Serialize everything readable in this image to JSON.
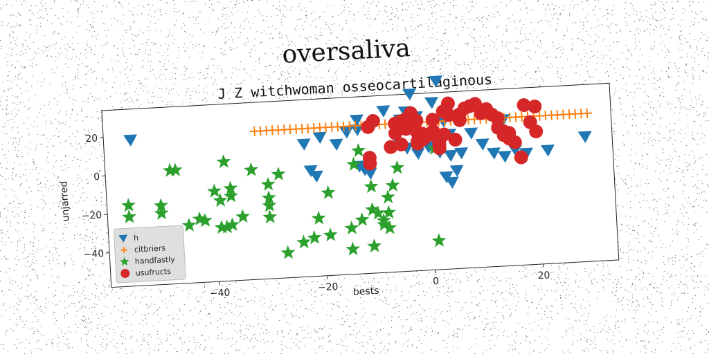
{
  "figure": {
    "suptitle": "oversaliva"
  },
  "chart_data": {
    "type": "scatter",
    "title": "J Z witchwoman osseocartilaginous",
    "xlabel": "bests",
    "ylabel": "unjarred",
    "xlim": [
      -60,
      34
    ],
    "ylim": [
      -58,
      34
    ],
    "xticks": [
      -40,
      -20,
      0,
      20
    ],
    "yticks": [
      20,
      0,
      -20,
      -40
    ],
    "grid": false,
    "legend_position": "lower-left",
    "series": [
      {
        "name": "h",
        "marker": "triangle-down",
        "color": "#1f77b4",
        "points": [
          [
            -55,
            18
          ],
          [
            2,
            40
          ],
          [
            -3,
            34
          ],
          [
            -23,
            11
          ],
          [
            -20,
            14
          ],
          [
            -17,
            10
          ],
          [
            -15,
            16
          ],
          [
            -13,
            17
          ],
          [
            -13,
            22
          ],
          [
            -10,
            20
          ],
          [
            -8,
            26
          ],
          [
            -5,
            21
          ],
          [
            -4,
            25
          ],
          [
            -2,
            22
          ],
          [
            1,
            29
          ],
          [
            3,
            19
          ],
          [
            4,
            12
          ],
          [
            -6,
            12
          ],
          [
            -4,
            6
          ],
          [
            -2,
            3
          ],
          [
            0,
            6
          ],
          [
            2,
            3
          ],
          [
            4,
            1
          ],
          [
            6,
            2
          ],
          [
            -22,
            -3
          ],
          [
            -21,
            -6
          ],
          [
            -13,
            -2
          ],
          [
            -12,
            -4
          ],
          [
            -11,
            -6
          ],
          [
            3,
            -10
          ],
          [
            4,
            -13
          ],
          [
            5,
            -7
          ],
          [
            8,
            12
          ],
          [
            10,
            6
          ],
          [
            12,
            1
          ],
          [
            14,
            -1
          ],
          [
            14,
            18
          ],
          [
            16,
            2
          ],
          [
            18,
            0
          ],
          [
            22,
            1
          ],
          [
            29,
            7
          ]
        ]
      },
      {
        "name": "citbriers",
        "marker": "plus",
        "color": "#ff7f0e",
        "points": [
          [
            -32,
            19
          ],
          [
            -30.9,
            19
          ],
          [
            -29.8,
            19
          ],
          [
            -28.7,
            19
          ],
          [
            -27.6,
            19
          ],
          [
            -26.5,
            19
          ],
          [
            -25.4,
            19
          ],
          [
            -24.3,
            19
          ],
          [
            -23.2,
            19
          ],
          [
            -22.1,
            19
          ],
          [
            -21,
            19
          ],
          [
            -19.9,
            19
          ],
          [
            -18.8,
            19
          ],
          [
            -17.7,
            19
          ],
          [
            -16.6,
            19
          ],
          [
            -15.5,
            19
          ],
          [
            -14.4,
            19
          ],
          [
            -13.3,
            19
          ],
          [
            -12.2,
            19
          ],
          [
            -11.1,
            19
          ],
          [
            -10,
            19
          ],
          [
            -8.9,
            19
          ],
          [
            -7.8,
            19
          ],
          [
            -6.7,
            19
          ],
          [
            -5.6,
            19
          ],
          [
            -4.5,
            19
          ],
          [
            -3.4,
            19
          ],
          [
            -2.3,
            19
          ],
          [
            -1.2,
            19
          ],
          [
            -0.1,
            19
          ],
          [
            1,
            19
          ],
          [
            2.1,
            19
          ],
          [
            3.2,
            19
          ],
          [
            4.3,
            19
          ],
          [
            5.4,
            19
          ],
          [
            6.5,
            19
          ],
          [
            7.6,
            19
          ],
          [
            8.7,
            19
          ],
          [
            9.8,
            19
          ],
          [
            10.9,
            19
          ],
          [
            12,
            19
          ],
          [
            13.1,
            19
          ],
          [
            14.2,
            19
          ],
          [
            15.3,
            19
          ],
          [
            16.4,
            19
          ],
          [
            17.5,
            19
          ],
          [
            18.6,
            19
          ],
          [
            19.7,
            19
          ],
          [
            20.8,
            19
          ],
          [
            21.9,
            19
          ],
          [
            23,
            19
          ],
          [
            24.1,
            19
          ],
          [
            25.2,
            19
          ],
          [
            26.3,
            19
          ],
          [
            27.4,
            19
          ],
          [
            28.5,
            19
          ],
          [
            29.6,
            19
          ]
        ]
      },
      {
        "name": "handfastly",
        "marker": "star",
        "color": "#2ca02c",
        "points": [
          [
            -56,
            -16
          ],
          [
            -56,
            -22
          ],
          [
            -50,
            -17
          ],
          [
            -50,
            -21
          ],
          [
            -48,
            1
          ],
          [
            -47,
            1
          ],
          [
            -45,
            -28
          ],
          [
            -43,
            -25
          ],
          [
            -42,
            -26
          ],
          [
            -40,
            -11
          ],
          [
            -39,
            -16
          ],
          [
            -39,
            -30
          ],
          [
            -38,
            -30
          ],
          [
            -37,
            -10
          ],
          [
            -37,
            -14
          ],
          [
            -37,
            -29
          ],
          [
            -38,
            4
          ],
          [
            -35,
            -25
          ],
          [
            -33,
            -1
          ],
          [
            -30,
            -26
          ],
          [
            -30,
            -16
          ],
          [
            -30,
            -9
          ],
          [
            -30,
            -20
          ],
          [
            -28,
            -4
          ],
          [
            -27,
            -45
          ],
          [
            -24,
            -40
          ],
          [
            -22,
            -38
          ],
          [
            -21,
            -28
          ],
          [
            -19,
            -15
          ],
          [
            -19,
            -37
          ],
          [
            -15,
            -45
          ],
          [
            -15,
            -34
          ],
          [
            -13,
            -30
          ],
          [
            -11,
            -13
          ],
          [
            -11,
            -25
          ],
          [
            -10,
            -27
          ],
          [
            -9,
            -33
          ],
          [
            -9,
            -31
          ],
          [
            -8,
            -35
          ],
          [
            -8,
            -27
          ],
          [
            -8,
            -19
          ],
          [
            -7,
            -13
          ],
          [
            -6,
            -4
          ],
          [
            -11,
            -44
          ],
          [
            -14,
            -1
          ],
          [
            1,
            5
          ],
          [
            1,
            -43
          ],
          [
            -13,
            6
          ]
        ]
      },
      {
        "name": "usufructs",
        "marker": "circle",
        "color": "#d62728",
        "points": [
          [
            -11,
            -1
          ],
          [
            -11,
            2
          ],
          [
            -11,
            18
          ],
          [
            -10,
            21
          ],
          [
            -7,
            7
          ],
          [
            -6,
            14
          ],
          [
            -6,
            19
          ],
          [
            -5,
            8
          ],
          [
            -5,
            20
          ],
          [
            -4,
            21
          ],
          [
            -4,
            16
          ],
          [
            -3,
            22
          ],
          [
            -3,
            18
          ],
          [
            -2,
            14
          ],
          [
            -2,
            20
          ],
          [
            -2,
            8
          ],
          [
            -1,
            13
          ],
          [
            -1,
            11
          ],
          [
            -1,
            10
          ],
          [
            0,
            12
          ],
          [
            1,
            20
          ],
          [
            1,
            14
          ],
          [
            2,
            5
          ],
          [
            2,
            7
          ],
          [
            2,
            9
          ],
          [
            3,
            12
          ],
          [
            3,
            24
          ],
          [
            4,
            22
          ],
          [
            4,
            28
          ],
          [
            5,
            9
          ],
          [
            6,
            22
          ],
          [
            6,
            19
          ],
          [
            7,
            25
          ],
          [
            8,
            26
          ],
          [
            9,
            27
          ],
          [
            10,
            22
          ],
          [
            11,
            24
          ],
          [
            12,
            21
          ],
          [
            13,
            14
          ],
          [
            13,
            19
          ],
          [
            14,
            10
          ],
          [
            14,
            12
          ],
          [
            15,
            11
          ],
          [
            15,
            8
          ],
          [
            16,
            6
          ],
          [
            17,
            -2
          ],
          [
            18,
            25
          ],
          [
            19,
            16
          ],
          [
            20,
            24
          ],
          [
            20,
            11
          ],
          [
            -3,
            24
          ],
          [
            -2,
            9
          ]
        ]
      }
    ]
  }
}
